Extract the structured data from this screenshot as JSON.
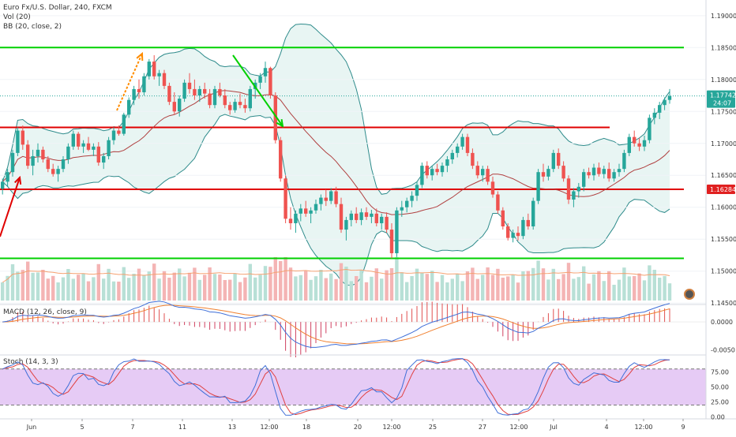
{
  "symbol_title": "Euro Fx/U.S. Dollar, 240, FXCM",
  "vol_label": "Vol (20)",
  "bb_label": "BB (20, close, 2)",
  "macd_label": "MACD (12, 26, close, 9)",
  "stoch_label": "Stoch (14, 3, 3)",
  "price_badge": {
    "value": "1.17742",
    "countdown": "24:07",
    "color": "#26a69a"
  },
  "level_badge": {
    "value": "1.16284",
    "color": "#e02020"
  },
  "colors": {
    "up": "#26a69a",
    "down": "#ef5350",
    "vol_up": "#b8e0d6",
    "vol_down": "#f4b4b4",
    "bb_line": "#2e8b8b",
    "bb_fill": "#e8f5f3",
    "basis": "#b04040",
    "green_level": "#00d000",
    "red_level": "#e00000",
    "macd": "#3f6fd8",
    "signal": "#f08030",
    "stoch_k": "#3f6fd8",
    "stoch_d": "#e04040",
    "stoch_band": "#e6cbf5"
  },
  "chart_data": {
    "type": "candlestick",
    "symbol": "EUR/USD",
    "timeframe": "240",
    "x_tick_labels": [
      "Jun",
      "5",
      "7",
      "11",
      "13",
      "12:00",
      "18",
      "20",
      "12:00",
      "25",
      "27",
      "12:00",
      "Jul",
      "4",
      "12:00",
      "9"
    ],
    "price_axis": {
      "range": [
        1.1449,
        1.1922
      ],
      "ticks": [
        "1.19000",
        "1.18500",
        "1.18000",
        "1.17500",
        "1.17000",
        "1.16500",
        "1.16000",
        "1.15500",
        "1.15000",
        "1.14500"
      ]
    },
    "macd_axis": {
      "range": [
        -0.0058,
        0.003
      ],
      "ticks": [
        "0.0000",
        "-0.0050"
      ]
    },
    "stoch_axis": {
      "range": [
        -3,
        102
      ],
      "ticks": [
        "75.00",
        "50.00",
        "25.00",
        "0.00"
      ],
      "bands": [
        20,
        80
      ]
    },
    "horizontal_levels": [
      {
        "price": 1.185,
        "color": "green"
      },
      {
        "price": 1.1725,
        "color": "red"
      },
      {
        "price": 1.1628,
        "color": "red",
        "label": "1.16284"
      },
      {
        "price": 1.152,
        "color": "green"
      }
    ],
    "last_price": 1.17742,
    "candles": [
      [
        1.1629,
        1.1645,
        1.162,
        1.164
      ],
      [
        1.164,
        1.166,
        1.1632,
        1.1655
      ],
      [
        1.1655,
        1.169,
        1.1648,
        1.1685
      ],
      [
        1.1685,
        1.1725,
        1.168,
        1.172
      ],
      [
        1.172,
        1.1728,
        1.169,
        1.1698
      ],
      [
        1.1698,
        1.1705,
        1.166,
        1.1665
      ],
      [
        1.1665,
        1.169,
        1.165,
        1.168
      ],
      [
        1.168,
        1.17,
        1.167,
        1.169
      ],
      [
        1.169,
        1.1695,
        1.167,
        1.1675
      ],
      [
        1.1675,
        1.168,
        1.1655,
        1.166
      ],
      [
        1.166,
        1.1668,
        1.1648,
        1.1652
      ],
      [
        1.1652,
        1.1665,
        1.164,
        1.166
      ],
      [
        1.166,
        1.168,
        1.1655,
        1.1675
      ],
      [
        1.1675,
        1.17,
        1.1668,
        1.1695
      ],
      [
        1.1695,
        1.172,
        1.169,
        1.1715
      ],
      [
        1.1715,
        1.1718,
        1.169,
        1.1695
      ],
      [
        1.1695,
        1.1705,
        1.1685,
        1.17
      ],
      [
        1.17,
        1.171,
        1.1688,
        1.169
      ],
      [
        1.169,
        1.17,
        1.168,
        1.1695
      ],
      [
        1.1695,
        1.1702,
        1.1665,
        1.167
      ],
      [
        1.167,
        1.1685,
        1.166,
        1.168
      ],
      [
        1.168,
        1.171,
        1.1675,
        1.1705
      ],
      [
        1.1705,
        1.1725,
        1.1698,
        1.172
      ],
      [
        1.172,
        1.1728,
        1.1712,
        1.1715
      ],
      [
        1.1715,
        1.1748,
        1.1712,
        1.1745
      ],
      [
        1.1745,
        1.1772,
        1.174,
        1.1768
      ],
      [
        1.1768,
        1.179,
        1.176,
        1.1785
      ],
      [
        1.1785,
        1.18,
        1.177,
        1.178
      ],
      [
        1.178,
        1.181,
        1.1775,
        1.1805
      ],
      [
        1.1805,
        1.1832,
        1.18,
        1.1828
      ],
      [
        1.1828,
        1.1838,
        1.18,
        1.1805
      ],
      [
        1.1805,
        1.1815,
        1.179,
        1.181
      ],
      [
        1.181,
        1.1815,
        1.1785,
        1.179
      ],
      [
        1.179,
        1.1795,
        1.176,
        1.1765
      ],
      [
        1.1765,
        1.178,
        1.1745,
        1.175
      ],
      [
        1.175,
        1.1775,
        1.1742,
        1.177
      ],
      [
        1.177,
        1.18,
        1.1765,
        1.1795
      ],
      [
        1.1795,
        1.181,
        1.1778,
        1.1785
      ],
      [
        1.1785,
        1.18,
        1.1768,
        1.1775
      ],
      [
        1.1775,
        1.179,
        1.1765,
        1.1785
      ],
      [
        1.1785,
        1.1795,
        1.177,
        1.1778
      ],
      [
        1.1778,
        1.1785,
        1.1755,
        1.176
      ],
      [
        1.176,
        1.179,
        1.1755,
        1.1785
      ],
      [
        1.1785,
        1.1795,
        1.1772,
        1.1775
      ],
      [
        1.1775,
        1.1785,
        1.1755,
        1.176
      ],
      [
        1.176,
        1.1765,
        1.1745,
        1.1752
      ],
      [
        1.1752,
        1.177,
        1.1748,
        1.1765
      ],
      [
        1.1765,
        1.1778,
        1.1755,
        1.176
      ],
      [
        1.176,
        1.177,
        1.1748,
        1.1755
      ],
      [
        1.1755,
        1.179,
        1.175,
        1.1785
      ],
      [
        1.1785,
        1.18,
        1.177,
        1.1795
      ],
      [
        1.1795,
        1.181,
        1.1785,
        1.1805
      ],
      [
        1.1805,
        1.1828,
        1.1795,
        1.1818
      ],
      [
        1.1818,
        1.182,
        1.177,
        1.1775
      ],
      [
        1.1775,
        1.178,
        1.17,
        1.1705
      ],
      [
        1.1705,
        1.171,
        1.164,
        1.1645
      ],
      [
        1.1645,
        1.165,
        1.1575,
        1.1582
      ],
      [
        1.1582,
        1.16,
        1.1565,
        1.1575
      ],
      [
        1.1575,
        1.1595,
        1.156,
        1.159
      ],
      [
        1.159,
        1.1605,
        1.1578,
        1.1598
      ],
      [
        1.1598,
        1.161,
        1.1585,
        1.159
      ],
      [
        1.159,
        1.16,
        1.1575,
        1.1595
      ],
      [
        1.1595,
        1.1612,
        1.159,
        1.1605
      ],
      [
        1.1605,
        1.162,
        1.1595,
        1.1615
      ],
      [
        1.1615,
        1.1628,
        1.1602,
        1.161
      ],
      [
        1.161,
        1.163,
        1.1605,
        1.1625
      ],
      [
        1.1625,
        1.1632,
        1.16,
        1.1605
      ],
      [
        1.1605,
        1.1615,
        1.156,
        1.1565
      ],
      [
        1.1565,
        1.1585,
        1.1548,
        1.158
      ],
      [
        1.158,
        1.1595,
        1.157,
        1.159
      ],
      [
        1.159,
        1.16,
        1.1575,
        1.158
      ],
      [
        1.158,
        1.1598,
        1.1572,
        1.1592
      ],
      [
        1.1592,
        1.16,
        1.158,
        1.1585
      ],
      [
        1.1585,
        1.1596,
        1.1575,
        1.159
      ],
      [
        1.159,
        1.1598,
        1.157,
        1.1575
      ],
      [
        1.1575,
        1.159,
        1.1565,
        1.1585
      ],
      [
        1.1585,
        1.1592,
        1.156,
        1.1565
      ],
      [
        1.1565,
        1.1575,
        1.152,
        1.1528
      ],
      [
        1.1528,
        1.16,
        1.1522,
        1.1595
      ],
      [
        1.1595,
        1.161,
        1.1585,
        1.16
      ],
      [
        1.16,
        1.1615,
        1.1592,
        1.161
      ],
      [
        1.161,
        1.1625,
        1.16,
        1.1618
      ],
      [
        1.1618,
        1.164,
        1.161,
        1.1635
      ],
      [
        1.1635,
        1.167,
        1.163,
        1.1665
      ],
      [
        1.1665,
        1.1672,
        1.1645,
        1.165
      ],
      [
        1.165,
        1.1665,
        1.1642,
        1.166
      ],
      [
        1.166,
        1.1668,
        1.165,
        1.1655
      ],
      [
        1.1655,
        1.167,
        1.1648,
        1.1665
      ],
      [
        1.1665,
        1.168,
        1.1655,
        1.1675
      ],
      [
        1.1675,
        1.169,
        1.1668,
        1.1685
      ],
      [
        1.1685,
        1.17,
        1.1678,
        1.1695
      ],
      [
        1.1695,
        1.1715,
        1.169,
        1.171
      ],
      [
        1.171,
        1.1715,
        1.168,
        1.1685
      ],
      [
        1.1685,
        1.1692,
        1.166,
        1.1665
      ],
      [
        1.1665,
        1.1672,
        1.1645,
        1.165
      ],
      [
        1.165,
        1.1665,
        1.164,
        1.166
      ],
      [
        1.166,
        1.1665,
        1.1635,
        1.164
      ],
      [
        1.164,
        1.1648,
        1.1615,
        1.162
      ],
      [
        1.162,
        1.1625,
        1.159,
        1.1595
      ],
      [
        1.1595,
        1.16,
        1.1565,
        1.157
      ],
      [
        1.157,
        1.1575,
        1.1548,
        1.1552
      ],
      [
        1.1552,
        1.1565,
        1.1545,
        1.156
      ],
      [
        1.156,
        1.157,
        1.1548,
        1.1555
      ],
      [
        1.1555,
        1.1585,
        1.155,
        1.158
      ],
      [
        1.158,
        1.159,
        1.1565,
        1.157
      ],
      [
        1.157,
        1.1615,
        1.1565,
        1.161
      ],
      [
        1.161,
        1.166,
        1.1605,
        1.1655
      ],
      [
        1.1655,
        1.1668,
        1.164,
        1.1648
      ],
      [
        1.1648,
        1.1665,
        1.1642,
        1.166
      ],
      [
        1.166,
        1.169,
        1.1655,
        1.1685
      ],
      [
        1.1685,
        1.1692,
        1.166,
        1.1665
      ],
      [
        1.1665,
        1.1672,
        1.164,
        1.1645
      ],
      [
        1.1645,
        1.165,
        1.1605,
        1.1612
      ],
      [
        1.1612,
        1.163,
        1.16,
        1.1625
      ],
      [
        1.1625,
        1.1638,
        1.1615,
        1.1632
      ],
      [
        1.1632,
        1.166,
        1.1625,
        1.1655
      ],
      [
        1.1655,
        1.1662,
        1.1645,
        1.165
      ],
      [
        1.165,
        1.1668,
        1.1642,
        1.1662
      ],
      [
        1.1662,
        1.167,
        1.1648,
        1.1652
      ],
      [
        1.1652,
        1.1665,
        1.1645,
        1.166
      ],
      [
        1.166,
        1.167,
        1.164,
        1.1645
      ],
      [
        1.1645,
        1.166,
        1.164,
        1.1655
      ],
      [
        1.1655,
        1.1668,
        1.1648,
        1.166
      ],
      [
        1.166,
        1.169,
        1.1655,
        1.1685
      ],
      [
        1.1685,
        1.1715,
        1.168,
        1.171
      ],
      [
        1.171,
        1.172,
        1.1695,
        1.17
      ],
      [
        1.17,
        1.1708,
        1.1688,
        1.1695
      ],
      [
        1.1695,
        1.1712,
        1.1688,
        1.1705
      ],
      [
        1.1705,
        1.1745,
        1.17,
        1.174
      ],
      [
        1.174,
        1.1755,
        1.173,
        1.1748
      ],
      [
        1.1748,
        1.1765,
        1.1738,
        1.176
      ],
      [
        1.176,
        1.1772,
        1.1752,
        1.1768
      ],
      [
        1.1768,
        1.1785,
        1.1762,
        1.1774
      ]
    ]
  }
}
